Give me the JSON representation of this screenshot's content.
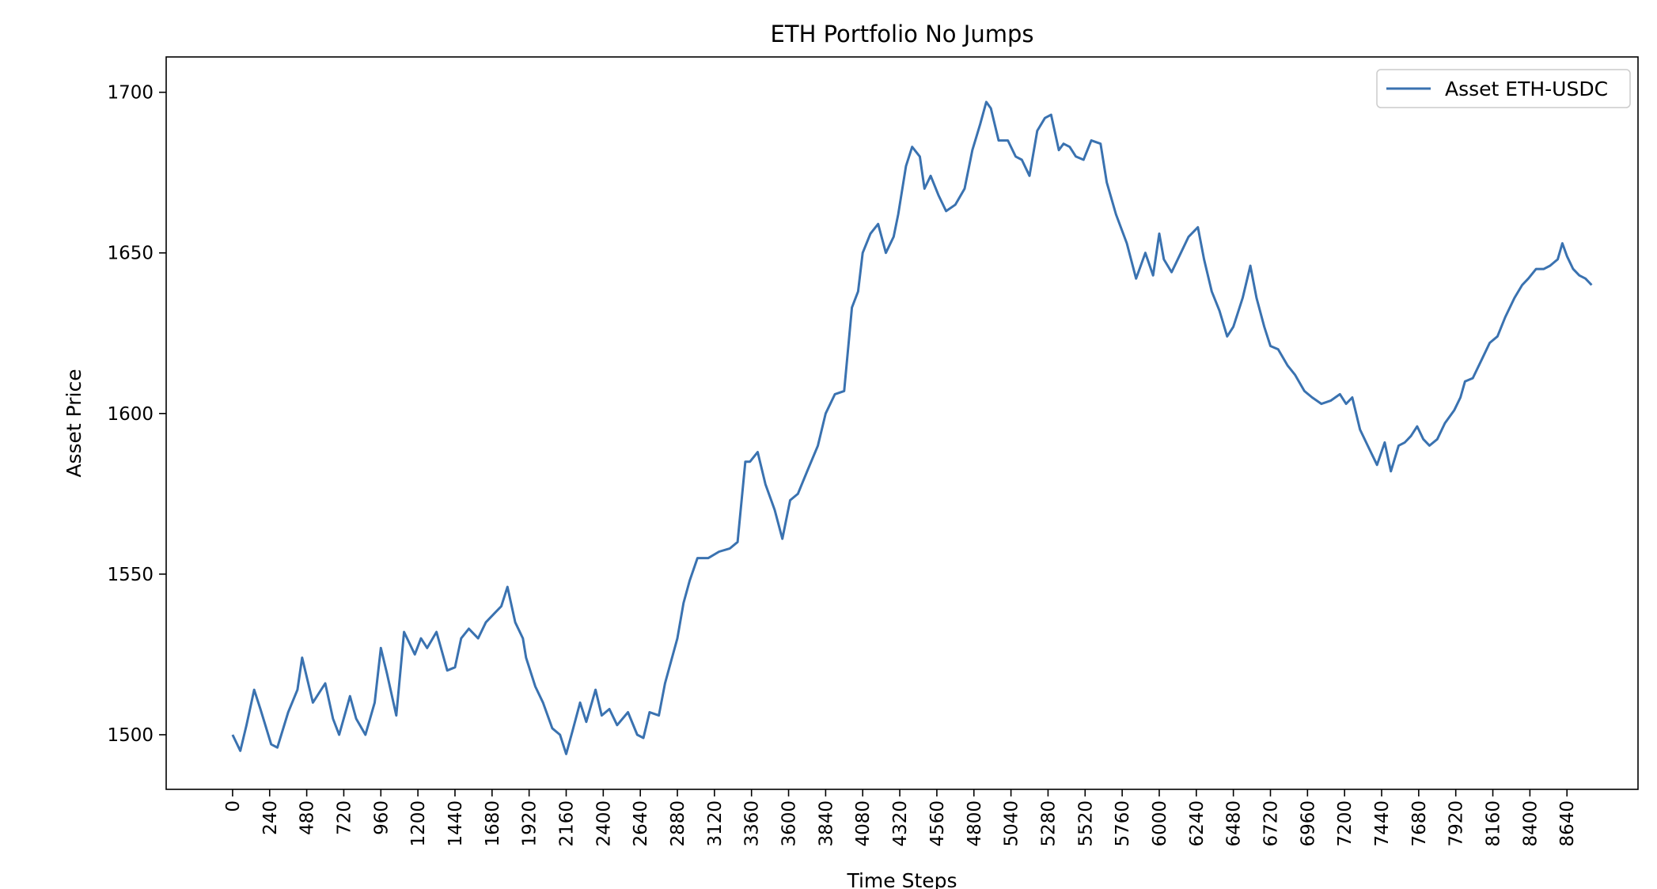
{
  "chart_data": {
    "type": "line",
    "title": "ETH Portfolio No Jumps",
    "xlabel": "Time Steps",
    "ylabel": "Asset Price",
    "xlim": [
      -430,
      9100
    ],
    "ylim": [
      1483,
      1711
    ],
    "x_ticks": [
      0,
      240,
      480,
      720,
      960,
      1200,
      1440,
      1680,
      1920,
      2160,
      2400,
      2640,
      2880,
      3120,
      3360,
      3600,
      3840,
      4080,
      4320,
      4560,
      4800,
      5040,
      5280,
      5520,
      5760,
      6000,
      6240,
      6480,
      6720,
      6960,
      7200,
      7440,
      7680,
      7920,
      8160,
      8400,
      8640
    ],
    "x_tick_labels": [
      "0",
      "240",
      "480",
      "720",
      "960",
      "1200",
      "1440",
      "1680",
      "1920",
      "2160",
      "2400",
      "2640",
      "2880",
      "3120",
      "3360",
      "3600",
      "3840",
      "4080",
      "4320",
      "4560",
      "4800",
      "5040",
      "5280",
      "5520",
      "5760",
      "6000",
      "6240",
      "6480",
      "6720",
      "6960",
      "7200",
      "7440",
      "7680",
      "7920",
      "8160",
      "8400",
      "8640"
    ],
    "y_ticks": [
      1500,
      1550,
      1600,
      1650,
      1700
    ],
    "y_tick_labels": [
      "1500",
      "1550",
      "1600",
      "1650",
      "1700"
    ],
    "grid": false,
    "legend_position": "top-right",
    "series": [
      {
        "name": "Asset ETH-USDC",
        "color": "#3a72b0",
        "x": [
          0,
          50,
          90,
          140,
          180,
          250,
          290,
          360,
          420,
          450,
          520,
          600,
          650,
          690,
          760,
          800,
          860,
          920,
          960,
          1000,
          1060,
          1110,
          1180,
          1220,
          1260,
          1320,
          1390,
          1440,
          1480,
          1530,
          1590,
          1640,
          1700,
          1740,
          1780,
          1830,
          1880,
          1900,
          1960,
          2010,
          2070,
          2120,
          2160,
          2200,
          2250,
          2290,
          2350,
          2390,
          2440,
          2490,
          2560,
          2620,
          2660,
          2700,
          2760,
          2800,
          2840,
          2880,
          2920,
          2960,
          3010,
          3080,
          3150,
          3220,
          3270,
          3320,
          3350,
          3400,
          3450,
          3510,
          3560,
          3610,
          3660,
          3720,
          3790,
          3840,
          3900,
          3960,
          4010,
          4050,
          4080,
          4130,
          4180,
          4230,
          4280,
          4310,
          4360,
          4400,
          4450,
          4480,
          4520,
          4570,
          4620,
          4680,
          4740,
          4790,
          4840,
          4880,
          4910,
          4960,
          5020,
          5070,
          5110,
          5160,
          5210,
          5260,
          5300,
          5350,
          5380,
          5420,
          5460,
          5510,
          5560,
          5620,
          5660,
          5720,
          5790,
          5850,
          5910,
          5960,
          6000,
          6030,
          6080,
          6140,
          6190,
          6250,
          6290,
          6340,
          6390,
          6440,
          6480,
          6540,
          6590,
          6630,
          6680,
          6720,
          6770,
          6830,
          6880,
          6940,
          6990,
          7050,
          7110,
          7170,
          7210,
          7250,
          7300,
          7350,
          7410,
          7460,
          7500,
          7550,
          7590,
          7630,
          7670,
          7710,
          7750,
          7800,
          7850,
          7910,
          7950,
          7980,
          8030,
          8090,
          8140,
          8190,
          8240,
          8300,
          8350,
          8390,
          8440,
          8490,
          8530,
          8580,
          8610,
          8640,
          8680,
          8720,
          8760,
          8800
        ],
        "y": [
          1500,
          1495,
          1503,
          1514,
          1508,
          1497,
          1496,
          1507,
          1514,
          1524,
          1510,
          1516,
          1505,
          1500,
          1512,
          1505,
          1500,
          1510,
          1527,
          1519,
          1506,
          1532,
          1525,
          1530,
          1527,
          1532,
          1520,
          1521,
          1530,
          1533,
          1530,
          1535,
          1538,
          1540,
          1546,
          1535,
          1530,
          1524,
          1515,
          1510,
          1502,
          1500,
          1494,
          1501,
          1510,
          1504,
          1514,
          1506,
          1508,
          1503,
          1507,
          1500,
          1499,
          1507,
          1506,
          1516,
          1523,
          1530,
          1541,
          1548,
          1555,
          1555,
          1557,
          1558,
          1560,
          1585,
          1585,
          1588,
          1578,
          1570,
          1561,
          1573,
          1575,
          1582,
          1590,
          1600,
          1606,
          1607,
          1633,
          1638,
          1650,
          1656,
          1659,
          1650,
          1655,
          1662,
          1677,
          1683,
          1680,
          1670,
          1674,
          1668,
          1663,
          1665,
          1670,
          1682,
          1690,
          1697,
          1695,
          1685,
          1685,
          1680,
          1679,
          1674,
          1688,
          1692,
          1693,
          1682,
          1684,
          1683,
          1680,
          1679,
          1685,
          1684,
          1672,
          1662,
          1653,
          1642,
          1650,
          1643,
          1656,
          1648,
          1644,
          1650,
          1655,
          1658,
          1648,
          1638,
          1632,
          1624,
          1627,
          1636,
          1646,
          1636,
          1627,
          1621,
          1620,
          1615,
          1612,
          1607,
          1605,
          1603,
          1604,
          1606,
          1603,
          1605,
          1595,
          1590,
          1584,
          1591,
          1582,
          1590,
          1591,
          1593,
          1596,
          1592,
          1590,
          1592,
          1597,
          1601,
          1605,
          1610,
          1611,
          1617,
          1622,
          1624,
          1630,
          1636,
          1640,
          1642,
          1645,
          1645,
          1646,
          1648,
          1653,
          1649,
          1645,
          1643,
          1642,
          1640
        ]
      }
    ]
  }
}
